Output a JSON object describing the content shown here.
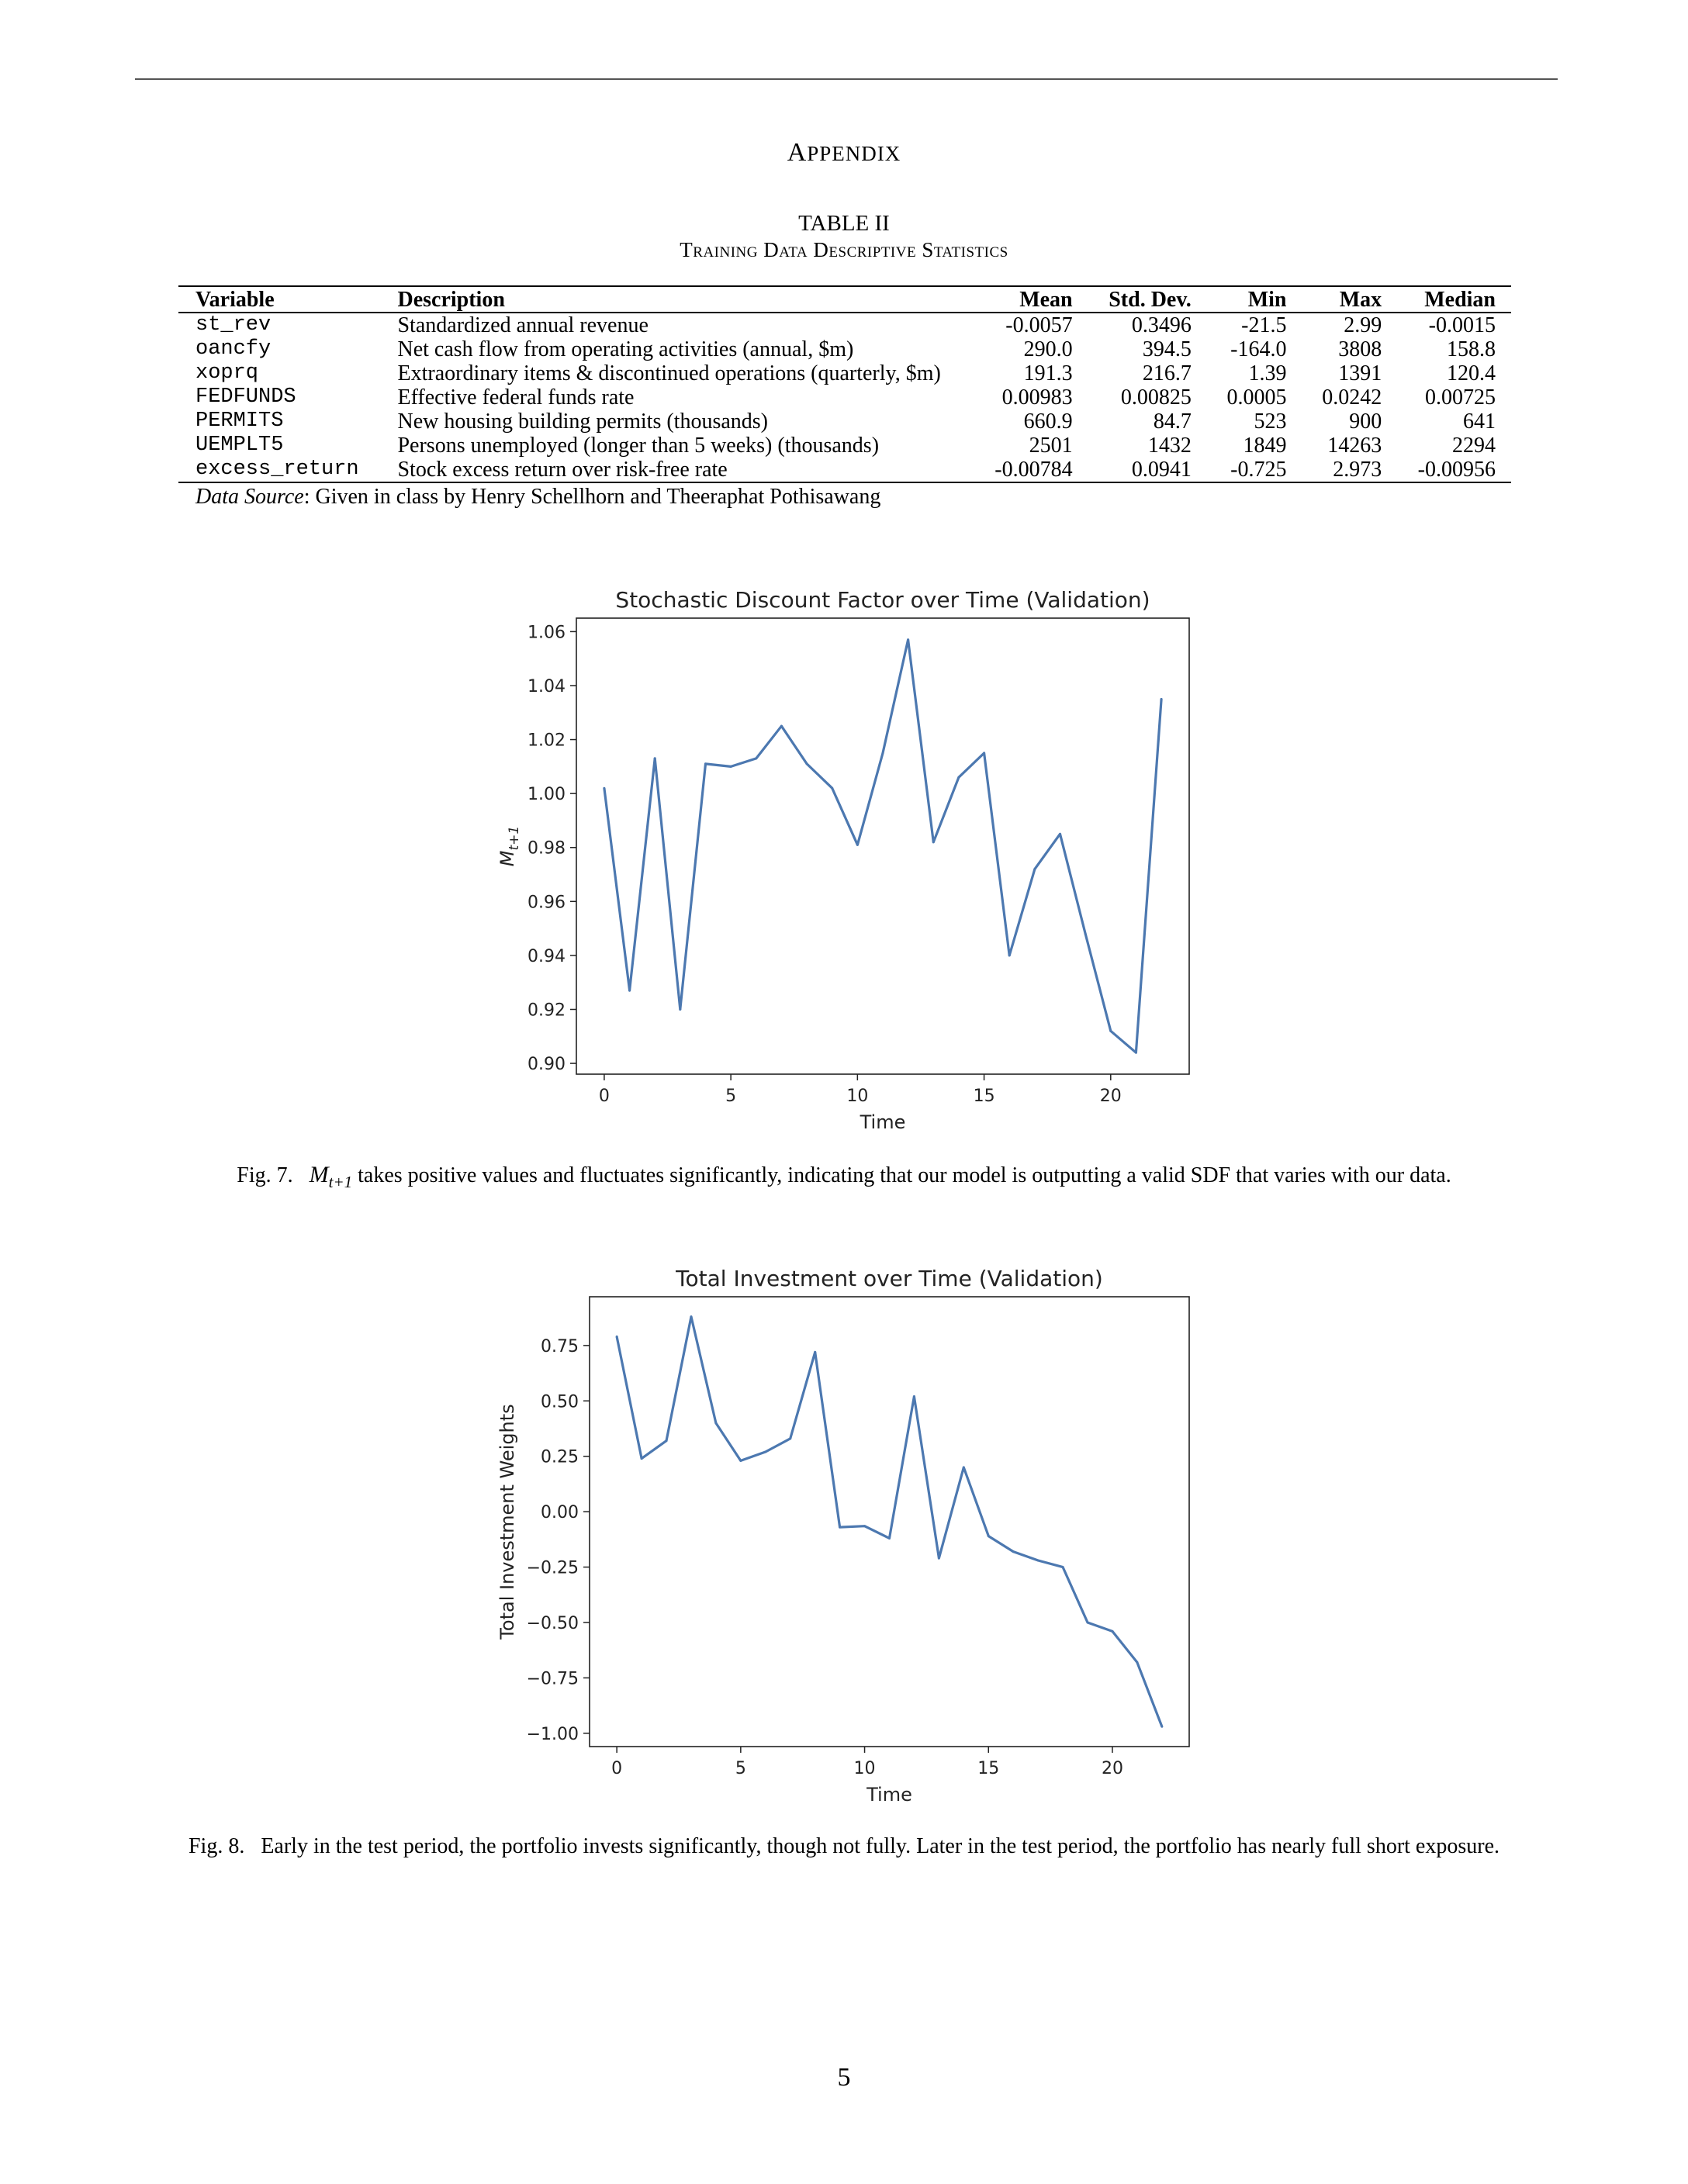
{
  "appendix": "Appendix",
  "table": {
    "number": "TABLE II",
    "title": "Training Data Descriptive Statistics",
    "headers": [
      "Variable",
      "Description",
      "Mean",
      "Std. Dev.",
      "Min",
      "Max",
      "Median"
    ],
    "rows": [
      [
        "st_rev",
        "Standardized annual revenue",
        "-0.0057",
        "0.3496",
        "-21.5",
        "2.99",
        "-0.0015"
      ],
      [
        "oancfy",
        "Net cash flow from operating activities (annual, $m)",
        "290.0",
        "394.5",
        "-164.0",
        "3808",
        "158.8"
      ],
      [
        "xoprq",
        "Extraordinary items & discontinued operations (quarterly, $m)",
        "191.3",
        "216.7",
        "1.39",
        "1391",
        "120.4"
      ],
      [
        "FEDFUNDS",
        "Effective federal funds rate",
        "0.00983",
        "0.00825",
        "0.0005",
        "0.0242",
        "0.00725"
      ],
      [
        "PERMITS",
        "New housing building permits (thousands)",
        "660.9",
        "84.7",
        "523",
        "900",
        "641"
      ],
      [
        "UEMPLT5",
        "Persons unemployed (longer than 5 weeks) (thousands)",
        "2501",
        "1432",
        "1849",
        "14263",
        "2294"
      ],
      [
        "excess_return",
        "Stock excess return over risk-free rate",
        "-0.00784",
        "0.0941",
        "-0.725",
        "2.973",
        "-0.00956"
      ]
    ],
    "source_label": "Data Source",
    "source_text": ": Given in class by Henry Schellhorn and Theeraphat Pothisawang"
  },
  "chart_data": [
    {
      "type": "line",
      "title": "Stochastic Discount Factor over Time (Validation)",
      "xlabel": "Time",
      "ylabel": "M_{t+1}",
      "xlim": [
        -1.1,
        23.1
      ],
      "ylim": [
        0.896,
        1.065
      ],
      "xticks": [
        "0",
        "5",
        "10",
        "15",
        "20"
      ],
      "yticks": [
        "0.90",
        "0.92",
        "0.94",
        "0.96",
        "0.98",
        "1.00",
        "1.02",
        "1.04",
        "1.06"
      ],
      "x": [
        0,
        1,
        2,
        3,
        4,
        5,
        6,
        7,
        8,
        9,
        10,
        11,
        12,
        13,
        14,
        15,
        16,
        17,
        18,
        19,
        20,
        21,
        22
      ],
      "series": [
        {
          "values": [
            1.002,
            0.927,
            1.013,
            0.92,
            1.011,
            1.01,
            1.013,
            1.025,
            1.011,
            1.002,
            0.981,
            1.015,
            1.057,
            0.982,
            1.006,
            1.015,
            0.94,
            0.972,
            0.985,
            0.948,
            0.912,
            0.904,
            1.035
          ]
        }
      ],
      "grid": false,
      "color": "#4c78b0"
    },
    {
      "type": "line",
      "title": "Total Investment over Time (Validation)",
      "xlabel": "Time",
      "ylabel": "Total Investment Weights",
      "xlim": [
        -1.1,
        23.1
      ],
      "ylim": [
        -1.06,
        0.97
      ],
      "xticks": [
        "0",
        "5",
        "10",
        "15",
        "20"
      ],
      "yticks": [
        "−1.00",
        "−0.75",
        "−0.50",
        "−0.25",
        "0.00",
        "0.25",
        "0.50",
        "0.75"
      ],
      "x": [
        0,
        1,
        2,
        3,
        4,
        5,
        6,
        7,
        8,
        9,
        10,
        11,
        12,
        13,
        14,
        15,
        16,
        17,
        18,
        19,
        20,
        21,
        22
      ],
      "series": [
        {
          "values": [
            0.79,
            0.24,
            0.32,
            0.88,
            0.4,
            0.23,
            0.27,
            0.33,
            0.72,
            -0.07,
            -0.065,
            -0.12,
            0.52,
            -0.21,
            0.2,
            -0.11,
            -0.18,
            -0.22,
            -0.25,
            -0.5,
            -0.54,
            -0.68,
            -0.97
          ]
        }
      ],
      "grid": false,
      "color": "#4c78b0"
    }
  ],
  "captions": {
    "fig7_label": "Fig. 7.",
    "fig7_math": "M",
    "fig7_sub": "t+1",
    "fig7_text": " takes positive values and fluctuates significantly, indicating that our model is outputting a valid SDF that varies with our data.",
    "fig8": "Fig. 8.   Early in the test period, the portfolio invests significantly, though not fully. Later in the test period, the portfolio has nearly full short exposure."
  },
  "page_number": "5"
}
